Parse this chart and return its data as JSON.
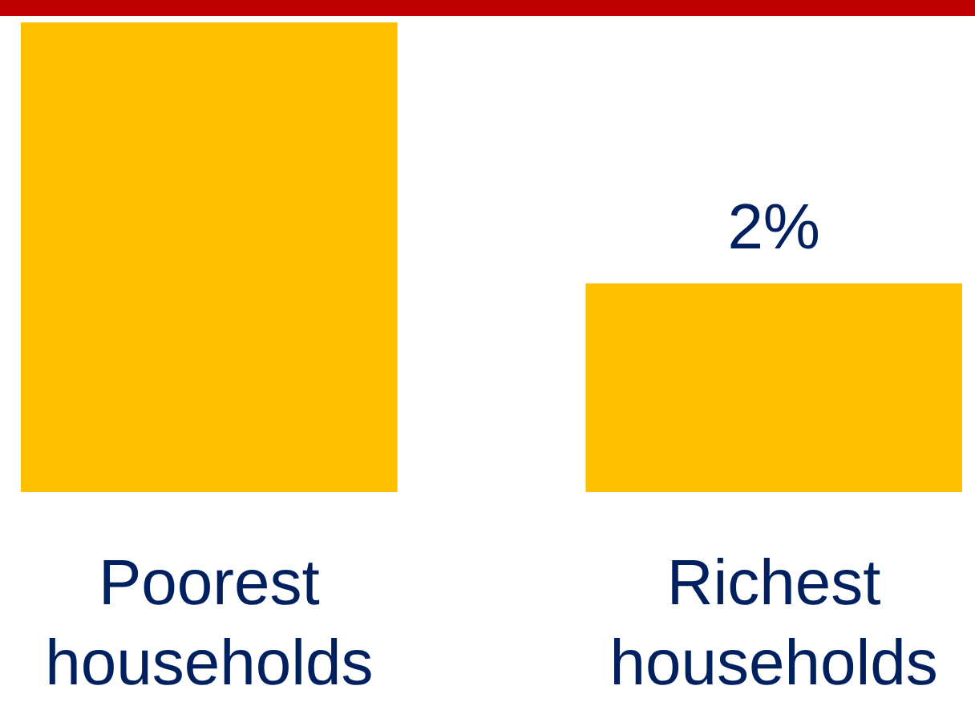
{
  "chart_data": {
    "type": "bar",
    "categories": [
      "Poorest households",
      "Richest households"
    ],
    "values": [
      4.5,
      2
    ],
    "relative": false,
    "color": "#ffc000",
    "value_labels": [
      null,
      "2%"
    ]
  }
}
